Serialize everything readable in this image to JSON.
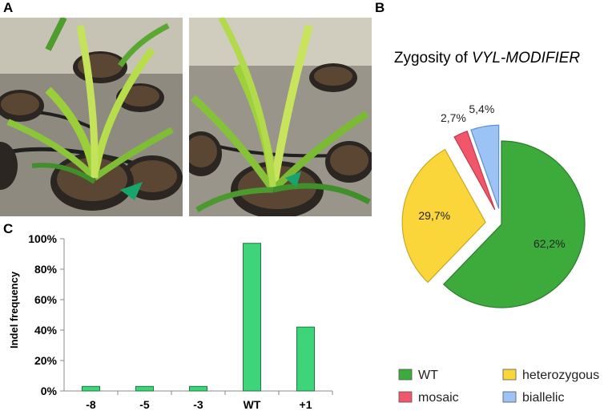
{
  "panels": {
    "a": "A",
    "b": "B",
    "c": "C"
  },
  "chart_data": [
    {
      "type": "pie",
      "title_prefix": "Zygosity of ",
      "title_italic": "VYL-MODIFIER",
      "slices": [
        {
          "name": "WT",
          "value": 62.2,
          "label": "62,2%",
          "color": "#3cab3c",
          "exploded": false
        },
        {
          "name": "heterozygous",
          "value": 29.7,
          "label": "29,7%",
          "color": "#fad63b",
          "exploded": true
        },
        {
          "name": "mosaic",
          "value": 2.7,
          "label": "2,7%",
          "color": "#f0576b",
          "exploded": true
        },
        {
          "name": "biallelic",
          "value": 5.4,
          "label": "5,4%",
          "color": "#9dc3f5",
          "exploded": true
        }
      ],
      "legend": [
        {
          "name": "WT",
          "color": "#3cab3c"
        },
        {
          "name": "heterozygous",
          "color": "#fad63b"
        },
        {
          "name": "mosaic",
          "color": "#f0576b"
        },
        {
          "name": "biallelic",
          "color": "#9dc3f5"
        }
      ],
      "legend_position": "bottom"
    },
    {
      "type": "bar",
      "categories": [
        "-8",
        "-5",
        "-3",
        "WT",
        "+1"
      ],
      "values": [
        3,
        3,
        3,
        97,
        42
      ],
      "ylabel": "Indel frequency",
      "ylim": [
        0,
        100
      ],
      "yticks": [
        "0%",
        "20%",
        "40%",
        "60%",
        "80%",
        "100%"
      ],
      "bar_color": "#3dd47a",
      "grid": false
    }
  ]
}
